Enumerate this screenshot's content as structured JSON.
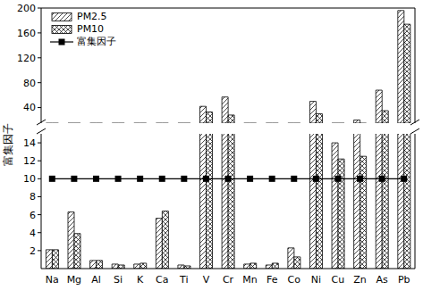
{
  "chart_data": {
    "type": "bar",
    "y_label": "富集因子",
    "categories": [
      "Na",
      "Mg",
      "Al",
      "Si",
      "K",
      "Ca",
      "Ti",
      "V",
      "Cr",
      "Mn",
      "Fe",
      "Co",
      "Ni",
      "Cu",
      "Zn",
      "As",
      "Pb"
    ],
    "series": [
      {
        "name": "PM2.5",
        "color": "#000000",
        "values": [
          2.1,
          6.3,
          0.9,
          0.5,
          0.5,
          5.6,
          0.4,
          42,
          57,
          0.5,
          0.4,
          2.3,
          50,
          14,
          20,
          68,
          196
        ]
      },
      {
        "name": "PM10",
        "color": "#000000",
        "values": [
          2.1,
          3.9,
          0.9,
          0.4,
          0.6,
          6.4,
          0.3,
          33,
          28,
          0.6,
          0.6,
          1.3,
          30,
          12.2,
          12.5,
          35,
          174
        ]
      },
      {
        "name": "富集因子",
        "type": "line",
        "marker": "square",
        "color": "#000000",
        "values": [
          10,
          10,
          10,
          10,
          10,
          10,
          10,
          10,
          10,
          10,
          10,
          10,
          10,
          10,
          10,
          10,
          10
        ]
      }
    ],
    "ylim": [
      0,
      200
    ],
    "yticks": [
      2,
      4,
      6,
      8,
      10,
      12,
      14,
      40,
      80,
      120,
      160,
      200
    ],
    "legend": "upper left"
  }
}
